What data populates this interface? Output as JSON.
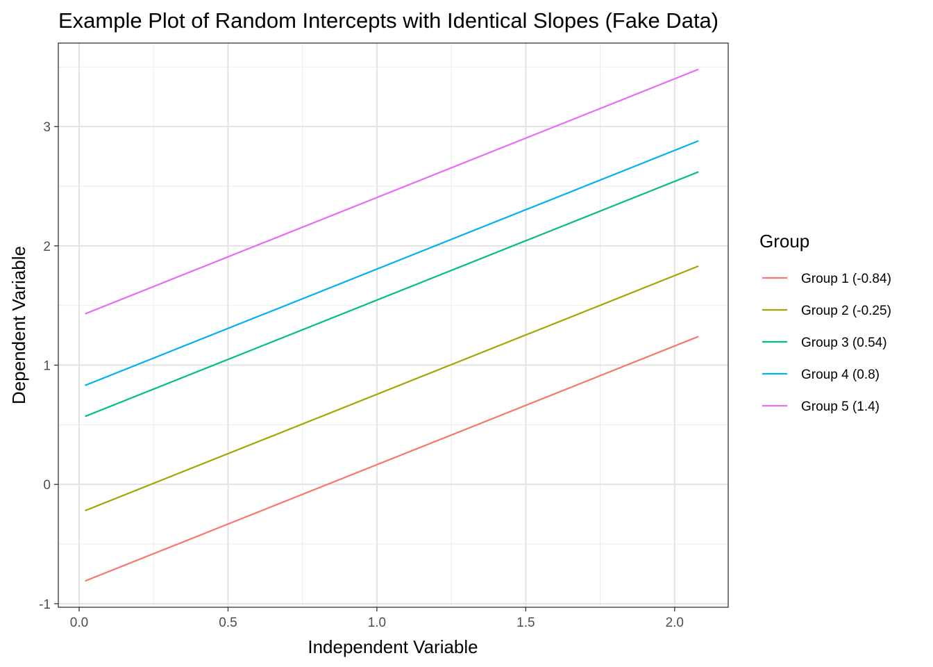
{
  "chart_data": {
    "type": "line",
    "title": "Example Plot of Random Intercepts with Identical Slopes (Fake Data)",
    "xlabel": "Independent Variable",
    "ylabel": "Dependent Variable",
    "xlim": [
      -0.07,
      2.18
    ],
    "ylim": [
      -1.03,
      3.7
    ],
    "x_ticks": [
      0.0,
      0.5,
      1.0,
      1.5,
      2.0
    ],
    "x_tick_labels": [
      "0.0",
      "0.5",
      "1.0",
      "1.5",
      "2.0"
    ],
    "y_ticks": [
      -1,
      0,
      1,
      2,
      3
    ],
    "y_tick_labels": [
      "-1",
      "0",
      "1",
      "2",
      "3"
    ],
    "grid": true,
    "legend_title": "Group",
    "legend_position": "right",
    "x": [
      0.02,
      2.08
    ],
    "series": [
      {
        "name": "Group 1 (-0.84)",
        "color": "#F8766D",
        "values": [
          -0.81,
          1.24
        ]
      },
      {
        "name": "Group 2 (-0.25)",
        "color": "#A3A500",
        "values": [
          -0.22,
          1.83
        ]
      },
      {
        "name": "Group 3 (0.54)",
        "color": "#00BF7D",
        "values": [
          0.57,
          2.62
        ]
      },
      {
        "name": "Group 4 (0.8)",
        "color": "#00B0F6",
        "values": [
          0.83,
          2.88
        ]
      },
      {
        "name": "Group 5 (1.4)",
        "color": "#E76BF3",
        "values": [
          1.43,
          3.48
        ]
      }
    ]
  }
}
